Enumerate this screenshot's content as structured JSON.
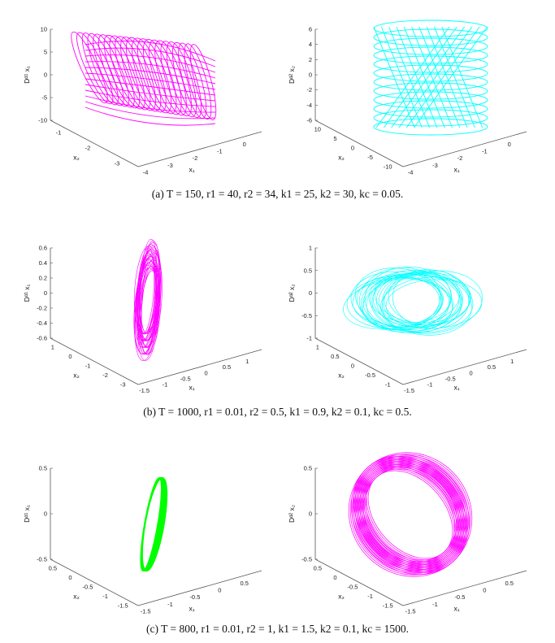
{
  "captions": {
    "a": "(a) T = 150, r1 = 40,  r2 = 34,  k1 = 25,  k2 = 30,  kc = 0.05.",
    "b": "(b) T = 1000, r1 = 0.01, r2 = 0.5,  k1 = 0.9,  k2 = 0.1,  kc = 0.5.",
    "c": "(c) T = 800, r1 = 0.01,  r2 = 1,  k1 = 1.5,  k2 = 0.1,  kc = 1500."
  },
  "colors": {
    "magenta": "#ff00ff",
    "cyan": "#00ffff",
    "green": "#00ff00",
    "axis": "#555555"
  },
  "panels": [
    {
      "id": "a1",
      "zlabel": "Dᵅ¹ x₁",
      "xlabel": "x₁",
      "ylabel": "x₂",
      "color": "#ff00ff",
      "shape": "cylinder-twist",
      "zticks": [
        "10",
        "5",
        "0",
        "-5",
        "-10"
      ],
      "xticks": [
        "-4",
        "-3",
        "-2",
        "-1",
        "0"
      ],
      "yticks": [
        "-1",
        "-2",
        "-3"
      ]
    },
    {
      "id": "a2",
      "zlabel": "Dᵅ² x₂",
      "xlabel": "x₁",
      "ylabel": "x₂",
      "color": "#00ffff",
      "shape": "cylinder-vertical",
      "zticks": [
        "6",
        "4",
        "2",
        "0",
        "-2",
        "-4",
        "-6"
      ],
      "xticks": [
        "-4",
        "-3",
        "-2",
        "-1",
        "0"
      ],
      "yticks": [
        "10",
        "5",
        "0",
        "-5",
        "-10"
      ]
    },
    {
      "id": "b1",
      "zlabel": "Dᵅ¹ x₁",
      "xlabel": "x₁",
      "ylabel": "x₂",
      "color": "#ff00ff",
      "shape": "blob-narrow",
      "zticks": [
        "0.6",
        "0.4",
        "0.2",
        "0",
        "-0.2",
        "-0.4",
        "-0.6"
      ],
      "xticks": [
        "-1.5",
        "-1",
        "-0.5",
        "0",
        "0.5",
        "1"
      ],
      "yticks": [
        "1",
        "0",
        "-1",
        "-2",
        "-3"
      ]
    },
    {
      "id": "b2",
      "zlabel": "Dᵅ² x₂",
      "xlabel": "x₁",
      "ylabel": "x₂",
      "color": "#00ffff",
      "shape": "blob-wide",
      "zticks": [
        "1",
        "0.5",
        "0",
        "-0.5",
        "-1"
      ],
      "xticks": [
        "-1.5",
        "-1",
        "-0.5",
        "0",
        "0.5",
        "1"
      ],
      "yticks": [
        "1",
        "0.5",
        "0",
        "-0.5",
        "-1"
      ]
    },
    {
      "id": "c1",
      "zlabel": "Dᵅ¹ x₁",
      "xlabel": "x₁",
      "ylabel": "x₂",
      "color": "#00ff00",
      "shape": "ring-thin",
      "zticks": [
        "0.5",
        "0",
        "-0.5"
      ],
      "xticks": [
        "-1.5",
        "-1",
        "-0.5",
        "0",
        "0.5"
      ],
      "yticks": [
        "0.5",
        "0",
        "-0.5",
        "-1",
        "-1.5"
      ]
    },
    {
      "id": "c2",
      "zlabel": "Dᵅ² x₂",
      "xlabel": "x₁",
      "ylabel": "x₂",
      "color": "#ff00ff",
      "shape": "torus",
      "zticks": [
        "0.5",
        "0",
        "-0.5"
      ],
      "xticks": [
        "-1.5",
        "-1",
        "-0.5",
        "0",
        "0.5"
      ],
      "yticks": [
        "0.5",
        "0",
        "-0.5",
        "-1",
        "-1.5"
      ]
    }
  ]
}
